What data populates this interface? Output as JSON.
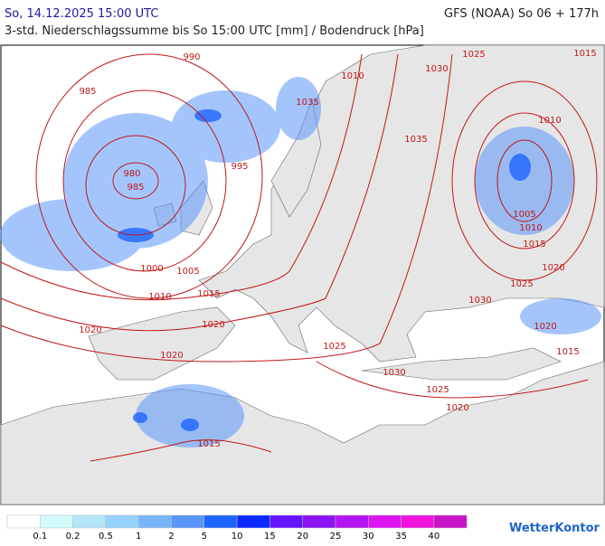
{
  "header": {
    "datetime": "So, 14.12.2025 15:00 UTC",
    "model": "GFS (NOAA) So 06 + 177h",
    "subtitle": "3-std. Niederschlagssumme bis So 15:00 UTC [mm] / Bodendruck [hPa]"
  },
  "isobar_labels": [
    "990",
    "985",
    "980",
    "985",
    "995",
    "1000",
    "1005",
    "1010",
    "1015",
    "1020",
    "1020",
    "1020",
    "1015",
    "1010",
    "1030",
    "1025",
    "1015",
    "1035",
    "1035",
    "1010",
    "1005",
    "1010",
    "1015",
    "1020",
    "1025",
    "1030",
    "1020",
    "1015",
    "1025",
    "1030",
    "1025",
    "1020"
  ],
  "legend": {
    "thresholds": [
      0.1,
      0.2,
      0.5,
      1,
      2,
      5,
      10,
      15,
      20,
      25,
      30,
      35,
      40
    ],
    "colors": [
      "#ffffff",
      "#d2fafa",
      "#b4e6fa",
      "#96d2fa",
      "#78b4fa",
      "#5a96fa",
      "#1e64ff",
      "#0a28ff",
      "#6414ff",
      "#8c14f0",
      "#b414f0",
      "#dc14f0",
      "#f014dc",
      "#c814c8"
    ]
  },
  "brand": "WetterKontor"
}
